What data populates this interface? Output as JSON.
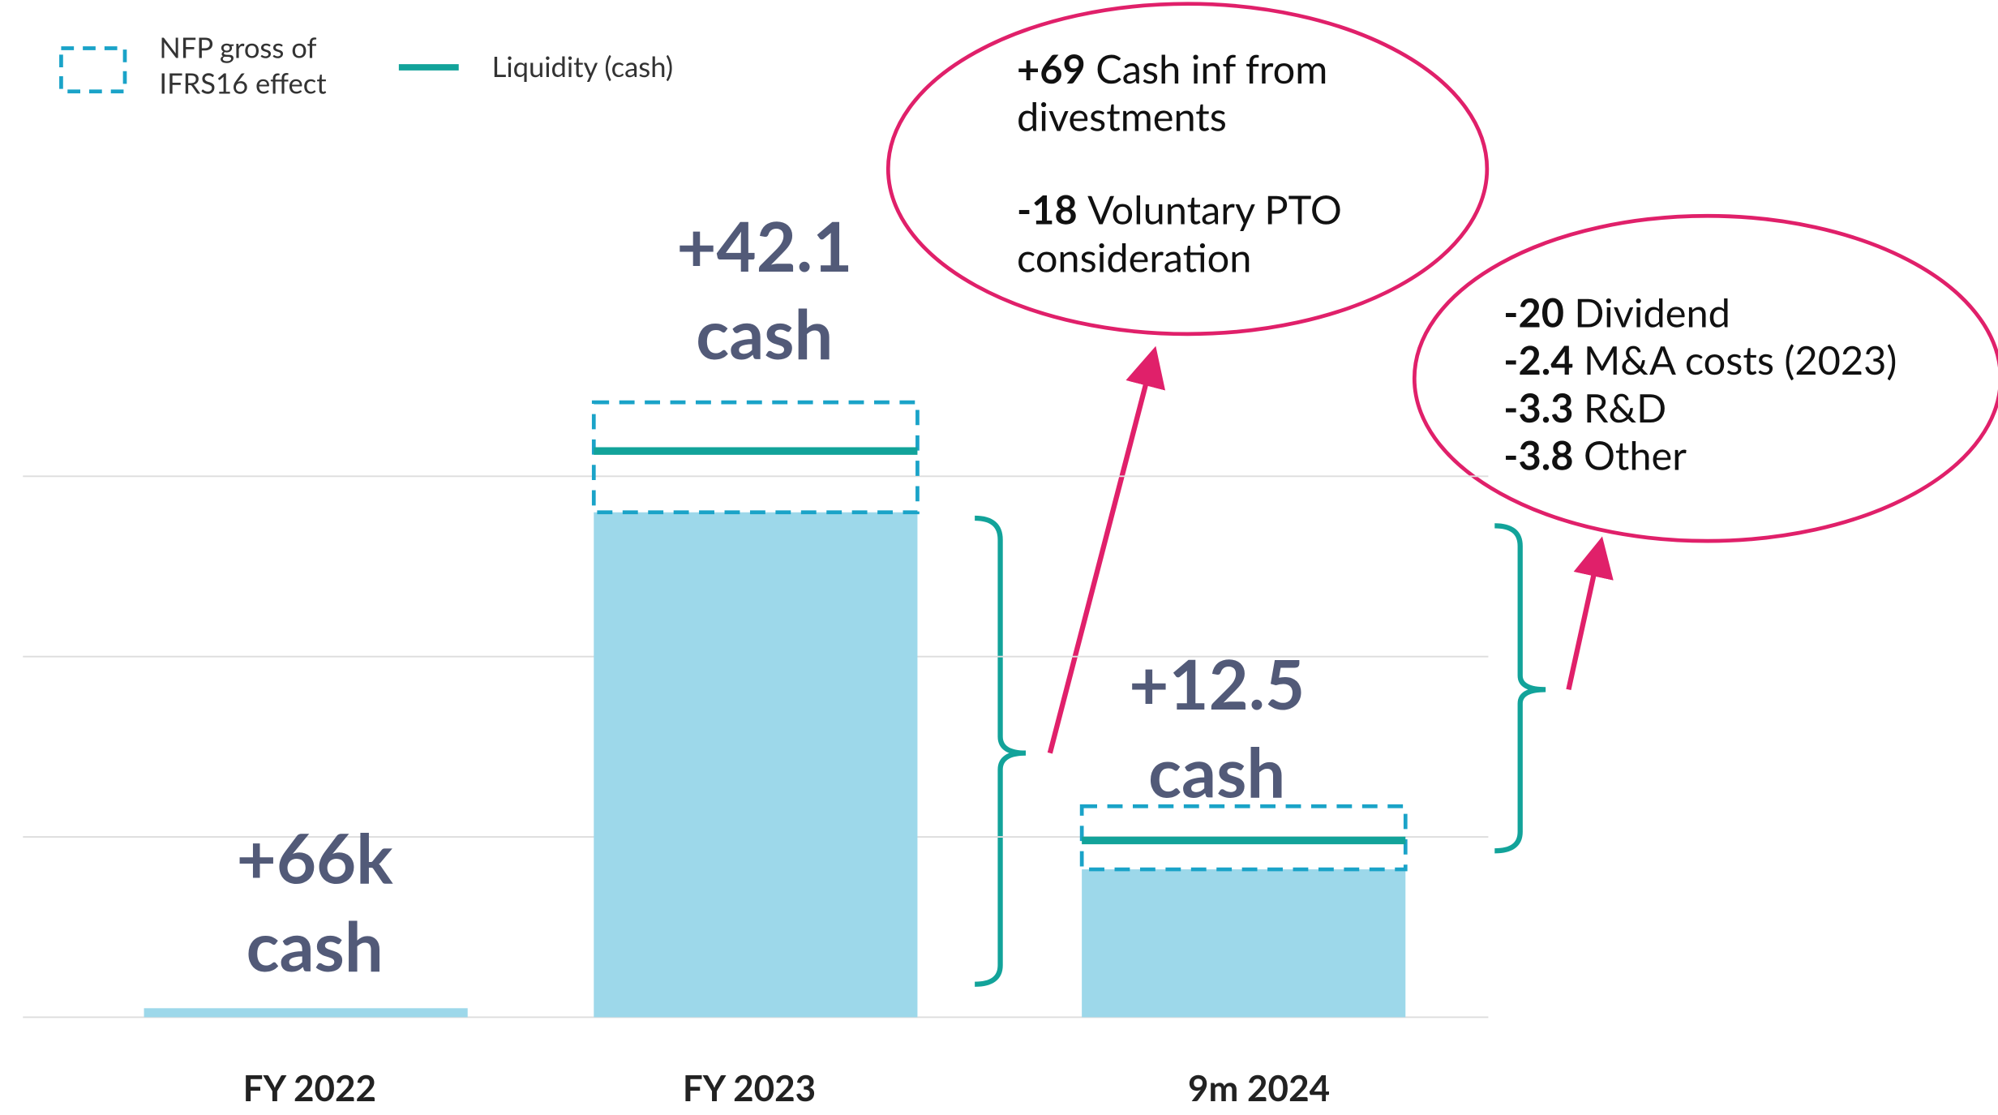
{
  "chart_data": {
    "type": "bar",
    "categories": [
      "FY 2022",
      "FY 2023",
      "9m 2024"
    ],
    "bars": {
      "color": "#9dd8ea",
      "values": [
        0.05,
        2.8,
        0.82
      ]
    },
    "series": [
      {
        "name": "NFP gross of IFRS16 effect",
        "color": "#1aa3c8",
        "style": "dashed-box",
        "values": [
          null,
          3.41,
          1.17
        ]
      },
      {
        "name": "Liquidity (cash)",
        "color": "#12a39a",
        "style": "line",
        "values": [
          null,
          3.14,
          0.98
        ]
      }
    ],
    "gridlines": [
      0,
      1,
      2,
      3
    ],
    "annotations": [
      {
        "lines": [
          "+66k",
          "cash"
        ]
      },
      {
        "lines": [
          "+42.1",
          "cash"
        ]
      },
      {
        "lines": [
          "+12.5",
          "cash"
        ]
      }
    ],
    "callouts": [
      {
        "items": [
          {
            "amount": "+69",
            "text": [
              "Cash inf from",
              "divestments"
            ]
          },
          {
            "amount": "-18",
            "text": [
              "Voluntary  PTO",
              "consideration"
            ]
          }
        ]
      },
      {
        "items": [
          {
            "amount": "-20",
            "text": [
              "Dividend"
            ]
          },
          {
            "amount": "-2.4",
            "text": [
              "M&A costs (2023)"
            ]
          },
          {
            "amount": "-3.3",
            "text": [
              "R&D"
            ]
          },
          {
            "amount": "-3.8",
            "text": [
              "Other"
            ]
          }
        ]
      }
    ]
  }
}
